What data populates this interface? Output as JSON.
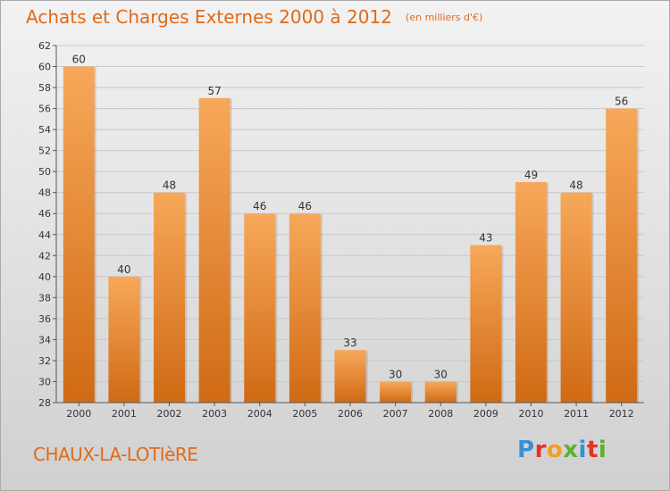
{
  "title": "Achats et Charges Externes 2000 à 2012",
  "subtitle": "(en milliers d'€)",
  "commune": "CHAUX-LA-LOTIèRE",
  "logo": {
    "letters": [
      "P",
      "r",
      "o",
      "x",
      "i",
      "t",
      "i"
    ],
    "colors": [
      "#3a8fd6",
      "#e3322a",
      "#f0a020",
      "#5cb030",
      "#3a8fd6",
      "#e3322a",
      "#5cb030"
    ]
  },
  "colors": {
    "title": "#e06a1a",
    "bar_top": "#f7a85a",
    "bar_bottom": "#d06a14",
    "grid": "#c8c8c8"
  },
  "chart_data": {
    "type": "bar",
    "categories": [
      "2000",
      "2001",
      "2002",
      "2003",
      "2004",
      "2005",
      "2006",
      "2007",
      "2008",
      "2009",
      "2010",
      "2011",
      "2012"
    ],
    "values": [
      60,
      40,
      48,
      57,
      46,
      46,
      33,
      30,
      30,
      43,
      49,
      48,
      56
    ],
    "ylim": [
      28,
      62
    ],
    "yticks": [
      28,
      30,
      32,
      34,
      36,
      38,
      40,
      42,
      44,
      46,
      48,
      50,
      52,
      54,
      56,
      58,
      60,
      62
    ],
    "grid": true,
    "legend": "none"
  }
}
